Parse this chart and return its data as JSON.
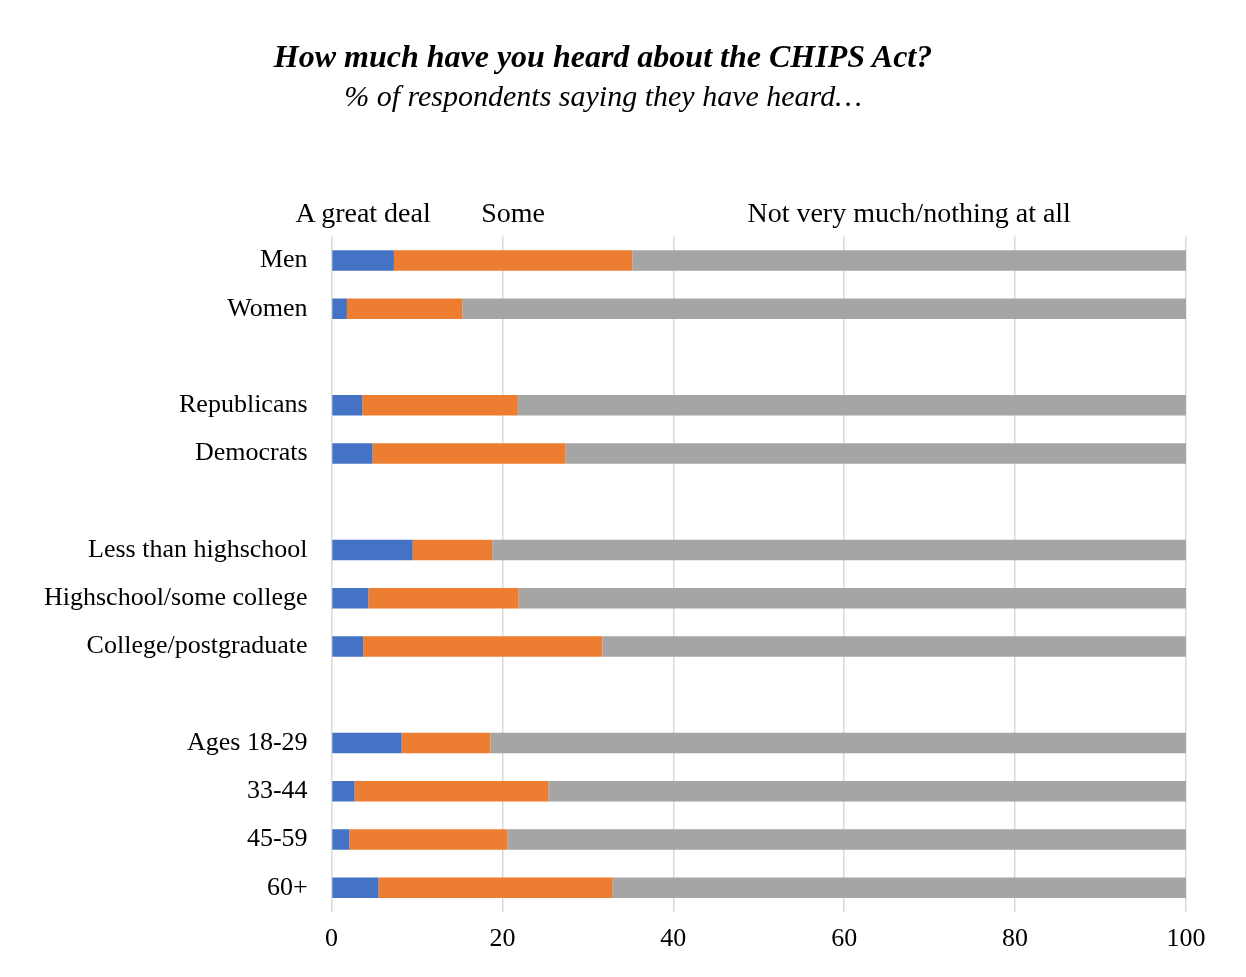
{
  "chart_data": {
    "type": "bar",
    "orientation": "horizontal",
    "stacked": true,
    "title": "How much have you heard about the CHIPS Act?",
    "subtitle": "% of respondents saying they have heard…",
    "categories": [
      "Men",
      "Women",
      null,
      "Republicans",
      "Democrats",
      null,
      "Less than highschool",
      "Highschool/some college",
      "College/postgraduate",
      null,
      "Ages 18-29",
      "33-44",
      "45-59",
      "60+"
    ],
    "series": [
      {
        "name": "A great deal",
        "color": "#4472c4",
        "values": [
          7.3,
          1.8,
          null,
          3.6,
          4.8,
          null,
          9.5,
          4.3,
          3.7,
          null,
          8.2,
          2.7,
          2.1,
          5.5
        ]
      },
      {
        "name": "Some",
        "color": "#ed7d31",
        "values": [
          27.9,
          13.5,
          null,
          18.2,
          22.6,
          null,
          9.3,
          17.6,
          28.0,
          null,
          10.4,
          22.7,
          18.5,
          27.4
        ]
      },
      {
        "name": "Not very much/nothing at all",
        "color": "#a5a5a5",
        "values": [
          64.8,
          84.7,
          null,
          78.2,
          72.6,
          null,
          81.2,
          78.1,
          68.3,
          null,
          81.4,
          74.6,
          79.4,
          67.1
        ]
      }
    ],
    "xlim": [
      0,
      100
    ],
    "xticks": [
      0,
      20,
      40,
      60,
      80,
      100
    ],
    "grid": "x",
    "legend": "top"
  }
}
